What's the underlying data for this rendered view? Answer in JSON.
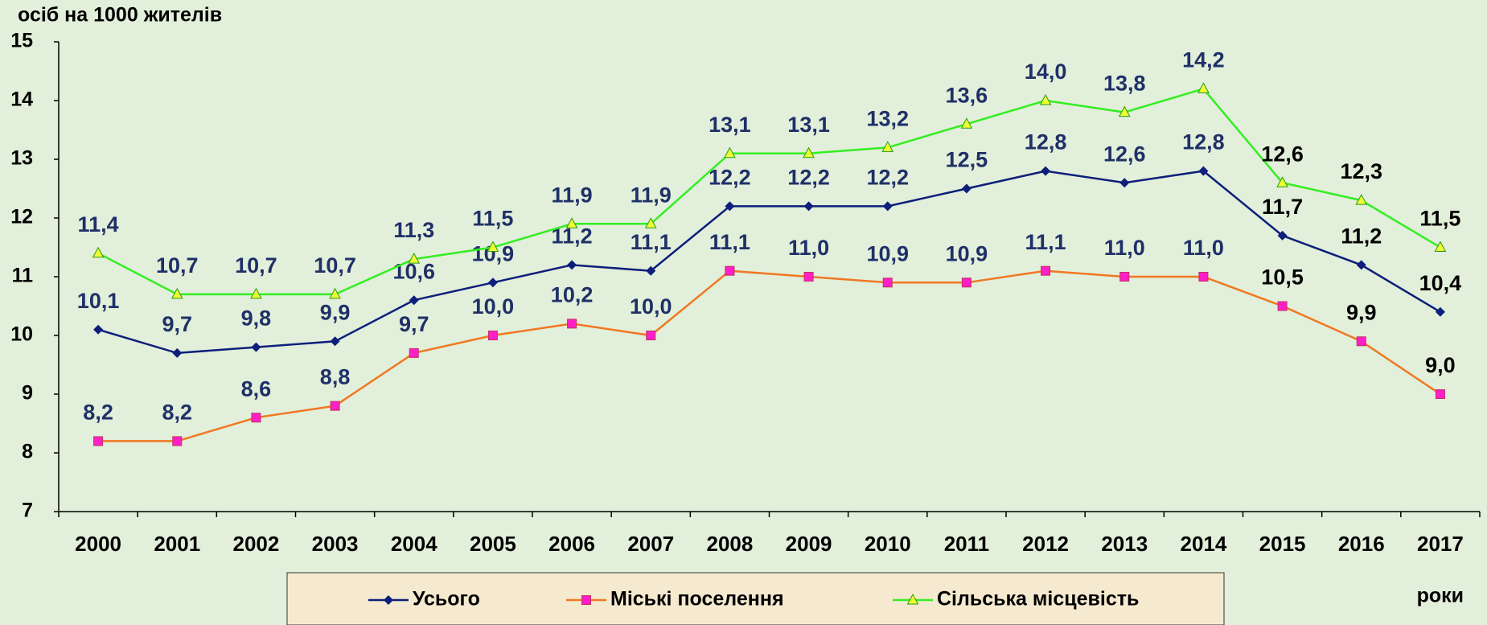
{
  "chart_data": {
    "type": "line",
    "y_axis_label": "осіб на 1000  жителів",
    "x_axis_label": "роки",
    "categories": [
      "2000",
      "2001",
      "2002",
      "2003",
      "2004",
      "2005",
      "2006",
      "2007",
      "2008",
      "2009",
      "2010",
      "2011",
      "2012",
      "2013",
      "2014",
      "2015",
      "2016",
      "2017"
    ],
    "series": [
      {
        "name": "Усього",
        "color": "#0d1f7a",
        "marker": "diamond",
        "marker_color": "#0d1f7a",
        "values": [
          10.1,
          9.7,
          9.8,
          9.9,
          10.6,
          10.9,
          11.2,
          11.1,
          12.2,
          12.2,
          12.2,
          12.5,
          12.8,
          12.6,
          12.8,
          11.7,
          11.2,
          10.4
        ],
        "value_labels": [
          "10,1",
          "9,7",
          "9,8",
          "9,9",
          "10,6",
          "10,9",
          "11,2",
          "11,1",
          "12,2",
          "12,2",
          "12,2",
          "12,5",
          "12,8",
          "12,6",
          "12,8",
          "11,7",
          "11,2",
          "10,4"
        ]
      },
      {
        "name": "Міські поселення",
        "color": "#f07822",
        "marker": "square",
        "marker_color": "#ff1fc8",
        "values": [
          8.2,
          8.2,
          8.6,
          8.8,
          9.7,
          10.0,
          10.2,
          10.0,
          11.1,
          11.0,
          10.9,
          10.9,
          11.1,
          11.0,
          11.0,
          10.5,
          9.9,
          9.0
        ],
        "value_labels": [
          "8,2",
          "8,2",
          "8,6",
          "8,8",
          "9,7",
          "10,0",
          "10,2",
          "10,0",
          "11,1",
          "11,0",
          "10,9",
          "10,9",
          "11,1",
          "11,0",
          "11,0",
          "10,5",
          "9,9",
          "9,0"
        ]
      },
      {
        "name": "Сільська місцевість",
        "color": "#33ee22",
        "marker": "triangle",
        "marker_color": "#eeff33",
        "values": [
          11.4,
          10.7,
          10.7,
          10.7,
          11.3,
          11.5,
          11.9,
          11.9,
          13.1,
          13.1,
          13.2,
          13.6,
          14.0,
          13.8,
          14.2,
          12.6,
          12.3,
          11.5
        ],
        "value_labels": [
          "11,4",
          "10,7",
          "10,7",
          "10,7",
          "11,3",
          "11,5",
          "11,9",
          "11,9",
          "13,1",
          "13,1",
          "13,2",
          "13,6",
          "14,0",
          "13,8",
          "14,2",
          "12,6",
          "12,3",
          "11,5"
        ]
      }
    ],
    "ylim": [
      7,
      15
    ],
    "yticks": [
      7,
      8,
      9,
      10,
      11,
      12,
      13,
      14,
      15
    ],
    "grid": false,
    "legend": "bottom"
  }
}
